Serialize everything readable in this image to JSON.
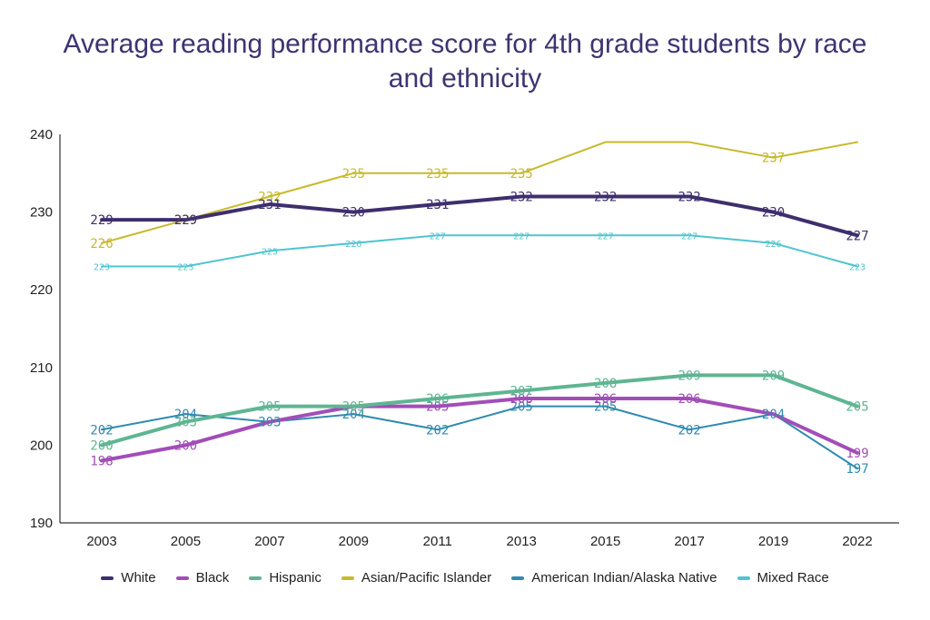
{
  "chart_data": {
    "type": "line",
    "title_lines": [
      "Average reading performance score for 4th grade students by race",
      "and ethnicity"
    ],
    "categories": [
      "2003",
      "2005",
      "2007",
      "2009",
      "2011",
      "2013",
      "2015",
      "2017",
      "2019",
      "2022"
    ],
    "ylim": [
      190,
      240
    ],
    "yticks": [
      190,
      200,
      210,
      220,
      230,
      240
    ],
    "grid": false,
    "legend_position": "bottom",
    "series": [
      {
        "name": "White",
        "color": "#3d2f6e",
        "values": [
          229,
          229,
          231,
          230,
          231,
          232,
          232,
          232,
          230,
          227
        ],
        "labels": [
          "229",
          "229",
          "231",
          "230",
          "231",
          "232",
          "232",
          "232",
          "230",
          "227"
        ]
      },
      {
        "name": "Black",
        "color": "#a24db8",
        "values": [
          198,
          200,
          203,
          205,
          205,
          206,
          206,
          206,
          204,
          199
        ],
        "labels": [
          "198",
          "200",
          "",
          "",
          "205",
          "206",
          "206",
          "206",
          "",
          "199"
        ]
      },
      {
        "name": "Hispanic",
        "color": "#5fb592",
        "values": [
          200,
          203,
          205,
          205,
          206,
          207,
          208,
          209,
          209,
          205
        ],
        "labels": [
          "200",
          "203",
          "205",
          "205",
          "206",
          "207",
          "208",
          "209",
          "209",
          "205"
        ]
      },
      {
        "name": "Asian/Pacific Islander",
        "color": "#c8b92a",
        "values": [
          226,
          229,
          232,
          235,
          235,
          235,
          239,
          239,
          237,
          239
        ],
        "labels": [
          "226",
          "229",
          "232",
          "235",
          "235",
          "235",
          "",
          "",
          "237",
          ""
        ]
      },
      {
        "name": "American Indian/Alaska Native",
        "color": "#2f8ab0",
        "values": [
          202,
          204,
          203,
          204,
          202,
          205,
          205,
          202,
          204,
          197
        ],
        "labels": [
          "202",
          "204",
          "203",
          "204",
          "202",
          "205",
          "205",
          "202",
          "204",
          "197"
        ]
      },
      {
        "name": "Mixed Race",
        "color": "#4fc4d0",
        "values": [
          223,
          223,
          225,
          226,
          227,
          227,
          227,
          227,
          226,
          223
        ],
        "labels": [
          "223",
          "223",
          "225",
          "226",
          "227",
          "227",
          "227",
          "227",
          "226",
          "223"
        ]
      }
    ]
  }
}
